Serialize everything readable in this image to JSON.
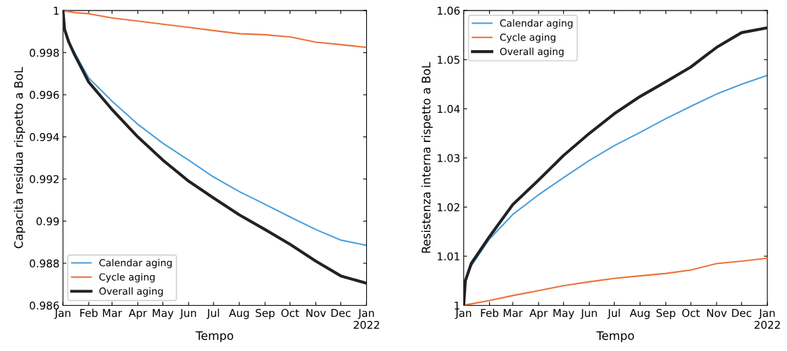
{
  "chart_data": [
    {
      "type": "line",
      "xlabel": "Tempo",
      "ylabel": "Capacità residua rispetto a BoL",
      "x": [
        "2021-01-01",
        "2021-01-03",
        "2021-01-08",
        "2021-01-15",
        "2021-02-01",
        "2021-03-01",
        "2021-04-01",
        "2021-05-01",
        "2021-06-01",
        "2021-07-01",
        "2021-08-01",
        "2021-09-01",
        "2021-10-01",
        "2021-11-01",
        "2021-12-01",
        "2022-01-01"
      ],
      "series": [
        {
          "name": "Calendar aging",
          "color": "#4a9fdc",
          "values": [
            null,
            null,
            0.9985,
            0.998,
            0.9968,
            0.9957,
            0.9946,
            0.9937,
            0.9929,
            0.9921,
            0.9914,
            0.9908,
            0.9902,
            0.9896,
            0.9891,
            0.98885
          ]
        },
        {
          "name": "Cycle aging",
          "color": "#e8743b",
          "values": [
            1.0,
            0.99998,
            0.99995,
            0.9999,
            0.99985,
            0.99965,
            0.9995,
            0.99935,
            0.9992,
            0.99905,
            0.9989,
            0.99885,
            0.99875,
            0.9985,
            0.99838,
            0.99825
          ]
        },
        {
          "name": "Overall aging",
          "color": "#222222",
          "values": [
            1.0,
            0.9991,
            0.9985,
            0.9979,
            0.9966,
            0.9953,
            0.994,
            0.9929,
            0.9919,
            0.9911,
            0.9903,
            0.9896,
            0.9889,
            0.9881,
            0.9874,
            0.98705
          ]
        }
      ],
      "xlim": [
        "2021-01-01",
        "2022-01-01"
      ],
      "xticks": [
        {
          "value": "2021-01-01",
          "label": "Jan"
        },
        {
          "value": "2021-02-01",
          "label": "Feb"
        },
        {
          "value": "2021-03-01",
          "label": "Mar"
        },
        {
          "value": "2021-04-01",
          "label": "Apr"
        },
        {
          "value": "2021-05-01",
          "label": "May"
        },
        {
          "value": "2021-06-01",
          "label": "Jun"
        },
        {
          "value": "2021-07-01",
          "label": "Jul"
        },
        {
          "value": "2021-08-01",
          "label": "Aug"
        },
        {
          "value": "2021-09-01",
          "label": "Sep"
        },
        {
          "value": "2021-10-01",
          "label": "Oct"
        },
        {
          "value": "2021-11-01",
          "label": "Nov"
        },
        {
          "value": "2021-12-01",
          "label": "Dec"
        },
        {
          "value": "2022-01-01",
          "label": "Jan\n2022"
        }
      ],
      "ylim": [
        0.986,
        1
      ],
      "yticks": [
        0.986,
        0.988,
        0.99,
        0.992,
        0.994,
        0.996,
        0.998,
        1
      ],
      "legend": "bottom left",
      "grid": false
    },
    {
      "type": "line",
      "xlabel": "Tempo",
      "ylabel": "Resistenza interna rispetto a BoL",
      "x": [
        "2021-01-01",
        "2021-01-03",
        "2021-01-10",
        "2021-02-01",
        "2021-03-01",
        "2021-04-01",
        "2021-05-01",
        "2021-06-01",
        "2021-07-01",
        "2021-08-01",
        "2021-09-01",
        "2021-10-01",
        "2021-11-01",
        "2021-12-01",
        "2022-01-01"
      ],
      "series": [
        {
          "name": "Calendar aging",
          "color": "#4a9fdc",
          "values": [
            1.0,
            1.005,
            1.008,
            1.0135,
            1.0185,
            1.0225,
            1.026,
            1.0295,
            1.0325,
            1.0352,
            1.038,
            1.0405,
            1.043,
            1.045,
            1.0468
          ]
        },
        {
          "name": "Cycle aging",
          "color": "#e8743b",
          "values": [
            1.0,
            1.0001,
            1.0003,
            1.001,
            1.002,
            1.003,
            1.004,
            1.0048,
            1.0055,
            1.006,
            1.0065,
            1.0072,
            1.0085,
            1.009,
            1.0096
          ]
        },
        {
          "name": "Overall aging",
          "color": "#222222",
          "values": [
            1.0,
            1.005,
            1.0085,
            1.014,
            1.0205,
            1.0255,
            1.0305,
            1.035,
            1.039,
            1.0425,
            1.0455,
            1.0485,
            1.0525,
            1.0555,
            1.0565
          ]
        }
      ],
      "xlim": [
        "2021-01-01",
        "2022-01-01"
      ],
      "xticks": [
        {
          "value": "2021-01-01",
          "label": "Jan"
        },
        {
          "value": "2021-02-01",
          "label": "Feb"
        },
        {
          "value": "2021-03-01",
          "label": "Mar"
        },
        {
          "value": "2021-04-01",
          "label": "Apr"
        },
        {
          "value": "2021-05-01",
          "label": "May"
        },
        {
          "value": "2021-06-01",
          "label": "Jun"
        },
        {
          "value": "2021-07-01",
          "label": "Jul"
        },
        {
          "value": "2021-08-01",
          "label": "Aug"
        },
        {
          "value": "2021-09-01",
          "label": "Sep"
        },
        {
          "value": "2021-10-01",
          "label": "Oct"
        },
        {
          "value": "2021-11-01",
          "label": "Nov"
        },
        {
          "value": "2021-12-01",
          "label": "Dec"
        },
        {
          "value": "2022-01-01",
          "label": "Jan\n2022"
        }
      ],
      "ylim": [
        1,
        1.06
      ],
      "yticks": [
        1,
        1.01,
        1.02,
        1.03,
        1.04,
        1.05,
        1.06
      ],
      "legend": "top left",
      "grid": false
    }
  ]
}
